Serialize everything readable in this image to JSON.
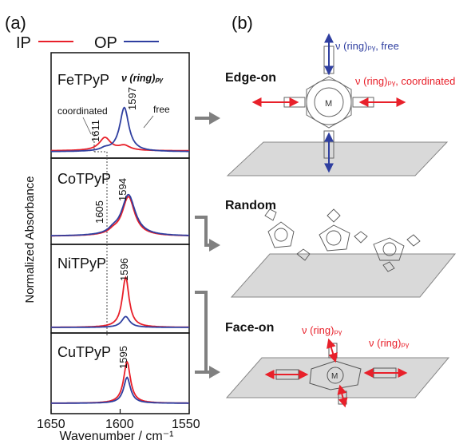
{
  "panel_a": {
    "label": "(a)",
    "legend": [
      {
        "name": "IP",
        "color": "#e8202a"
      },
      {
        "name": "OP",
        "color": "#2f3fa0"
      }
    ],
    "ylabel": "Normalized Absorbance",
    "xlabel": "Wavenumber / cm⁻¹",
    "subpanels": [
      {
        "name": "FeTPyP",
        "note": "ν (ring)ₚᵧ",
        "ann_coordinated": "coordinated",
        "ann_free": "free",
        "peaks": [
          "1611",
          "1597"
        ]
      },
      {
        "name": "CoTPyP",
        "peaks": [
          "1605",
          "1594"
        ]
      },
      {
        "name": "NiTPyP",
        "peaks": [
          "1596"
        ]
      },
      {
        "name": "CuTPyP",
        "peaks": [
          "1595"
        ]
      }
    ]
  },
  "panel_b": {
    "label": "(b)",
    "edge_on": {
      "title": "Edge-on",
      "free_label": "ν (ring)ₚᵧ, free",
      "coordinated_label": "ν (ring)ₚᵧ, coordinated",
      "metal": "M"
    },
    "random": {
      "title": "Random"
    },
    "face_on": {
      "title": "Face-on",
      "ring_label_left": "ν (ring)ₚᵧ",
      "ring_label_right": "ν (ring)ₚᵧ",
      "metal": "M"
    }
  },
  "colors": {
    "ip_red": "#e8202a",
    "op_blue": "#2f3fa0",
    "arrow_gray": "#808080",
    "plane_gray": "#d9d9d9"
  },
  "chart_data": {
    "type": "line",
    "title": "",
    "xlabel": "Wavenumber / cm⁻¹",
    "ylabel": "Normalized Absorbance",
    "xlim": [
      1650,
      1550
    ],
    "x_ticks": [
      "1650",
      "1600",
      "1550"
    ],
    "series_legend": [
      "IP",
      "OP"
    ],
    "panels": [
      {
        "name": "FeTPyP",
        "IP": {
          "peaks": [
            {
              "x": 1611,
              "height": 0.28,
              "width": 5
            },
            {
              "x": 1597,
              "height": 0.1,
              "width": 5
            }
          ],
          "baseline": 0.02
        },
        "OP": {
          "peaks": [
            {
              "x": 1597,
              "height": 0.95,
              "width": 4
            },
            {
              "x": 1611,
              "height": 0.05,
              "width": 4
            }
          ],
          "baseline": 0.0
        }
      },
      {
        "name": "CoTPyP",
        "IP": {
          "peaks": [
            {
              "x": 1594,
              "height": 0.82,
              "width": 5.5
            },
            {
              "x": 1605,
              "height": 0.06,
              "width": 4
            }
          ],
          "baseline": 0.02
        },
        "OP": {
          "peaks": [
            {
              "x": 1594,
              "height": 0.86,
              "width": 6
            },
            {
              "x": 1605,
              "height": 0.07,
              "width": 4
            }
          ],
          "baseline": 0.02
        }
      },
      {
        "name": "NiTPyP",
        "IP": {
          "peaks": [
            {
              "x": 1596,
              "height": 0.92,
              "width": 3
            }
          ],
          "baseline": 0.0
        },
        "OP": {
          "peaks": [
            {
              "x": 1596,
              "height": 0.2,
              "width": 3.5
            }
          ],
          "baseline": 0.0
        }
      },
      {
        "name": "CuTPyP",
        "IP": {
          "peaks": [
            {
              "x": 1595,
              "height": 0.72,
              "width": 3
            }
          ],
          "baseline": 0.0
        },
        "OP": {
          "peaks": [
            {
              "x": 1595,
              "height": 0.45,
              "width": 3
            }
          ],
          "baseline": 0.0
        }
      }
    ]
  }
}
